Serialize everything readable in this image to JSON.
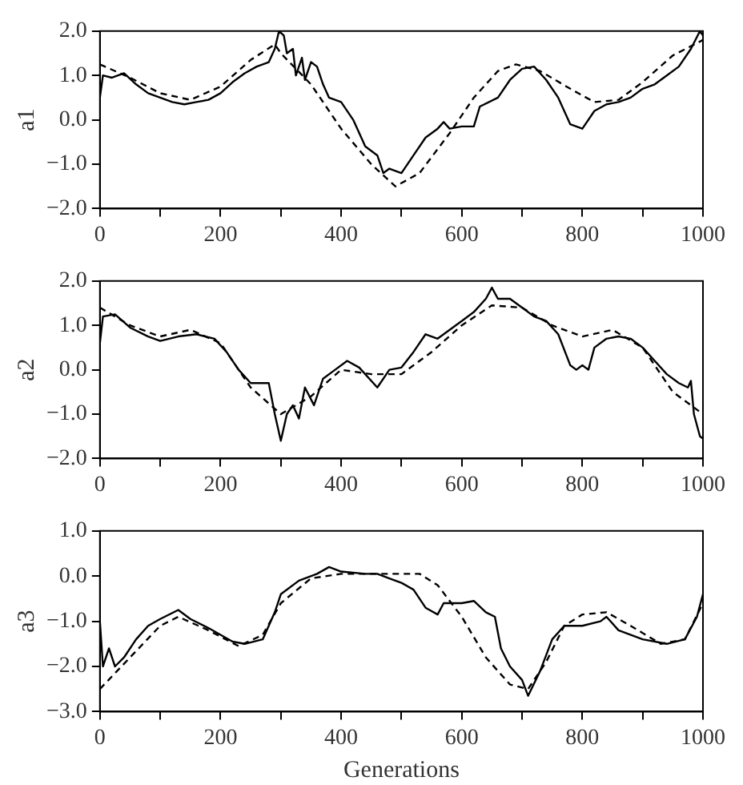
{
  "chart_data": [
    {
      "type": "line",
      "ylabel": "a1",
      "xlim": [
        0,
        1000
      ],
      "ylim": [
        -2,
        2
      ],
      "xticks": [
        0,
        {
          "value": 100,
          "label": null
        },
        200,
        {
          "value": 300,
          "label": null
        },
        400,
        {
          "value": 500,
          "label": null
        },
        600,
        {
          "value": 700,
          "label": null
        },
        800,
        {
          "value": 900,
          "label": null
        },
        1000
      ],
      "yticks": [
        {
          "value": -2,
          "label": "−2.0"
        },
        {
          "value": -1,
          "label": "−1.0"
        },
        {
          "value": 0,
          "label": "0.0"
        },
        {
          "value": 1,
          "label": "1.0"
        },
        {
          "value": 2,
          "label": "2.0"
        }
      ],
      "grid": false,
      "legend": false,
      "series": [
        {
          "color": "#000000",
          "line_style": "solid",
          "x": [
            0,
            5,
            20,
            40,
            60,
            80,
            100,
            120,
            140,
            160,
            180,
            200,
            220,
            240,
            260,
            280,
            290,
            297,
            305,
            310,
            320,
            325,
            335,
            340,
            350,
            360,
            370,
            380,
            400,
            420,
            440,
            460,
            470,
            480,
            500,
            520,
            540,
            560,
            570,
            580,
            600,
            620,
            630,
            660,
            680,
            700,
            720,
            740,
            760,
            780,
            800,
            820,
            840,
            860,
            880,
            900,
            920,
            940,
            960,
            980,
            995,
            1000
          ],
          "values": [
            0.5,
            1.0,
            0.95,
            1.05,
            0.8,
            0.6,
            0.5,
            0.4,
            0.35,
            0.4,
            0.45,
            0.6,
            0.85,
            1.05,
            1.2,
            1.3,
            1.6,
            2.0,
            1.9,
            1.5,
            1.6,
            1.0,
            1.4,
            0.9,
            1.3,
            1.2,
            0.8,
            0.5,
            0.4,
            0.0,
            -0.6,
            -0.8,
            -1.2,
            -1.1,
            -1.2,
            -0.8,
            -0.4,
            -0.2,
            -0.05,
            -0.2,
            -0.15,
            -0.15,
            0.3,
            0.5,
            0.9,
            1.15,
            1.2,
            0.9,
            0.5,
            -0.1,
            -0.2,
            0.2,
            0.35,
            0.4,
            0.5,
            0.7,
            0.8,
            1.0,
            1.2,
            1.6,
            2.0,
            1.9
          ]
        },
        {
          "color": "#000000",
          "line_style": "dashed",
          "x": [
            0,
            50,
            100,
            150,
            200,
            250,
            290,
            300,
            350,
            400,
            450,
            490,
            530,
            580,
            620,
            660,
            690,
            730,
            780,
            820,
            860,
            900,
            950,
            1000
          ],
          "values": [
            1.25,
            0.95,
            0.6,
            0.45,
            0.75,
            1.35,
            1.7,
            1.5,
            0.8,
            -0.2,
            -1.0,
            -1.5,
            -1.2,
            -0.3,
            0.5,
            1.1,
            1.25,
            1.1,
            0.7,
            0.4,
            0.45,
            0.85,
            1.45,
            1.8
          ]
        }
      ]
    },
    {
      "type": "line",
      "ylabel": "a2",
      "xlim": [
        0,
        1000
      ],
      "ylim": [
        -2,
        2
      ],
      "xticks": [
        0,
        {
          "value": 100,
          "label": null
        },
        200,
        {
          "value": 300,
          "label": null
        },
        400,
        {
          "value": 500,
          "label": null
        },
        600,
        {
          "value": 700,
          "label": null
        },
        800,
        {
          "value": 900,
          "label": null
        },
        1000
      ],
      "yticks": [
        {
          "value": -2,
          "label": "−2.0"
        },
        {
          "value": -1,
          "label": "−1.0"
        },
        {
          "value": 0,
          "label": "0.0"
        },
        {
          "value": 1,
          "label": "1.0"
        },
        {
          "value": 2,
          "label": "2.0"
        }
      ],
      "grid": false,
      "legend": false,
      "series": [
        {
          "color": "#000000",
          "line_style": "solid",
          "x": [
            0,
            5,
            25,
            50,
            80,
            100,
            130,
            160,
            190,
            210,
            230,
            250,
            280,
            290,
            300,
            310,
            320,
            330,
            340,
            355,
            370,
            390,
            410,
            430,
            460,
            480,
            500,
            520,
            540,
            560,
            580,
            600,
            620,
            640,
            650,
            660,
            680,
            700,
            720,
            740,
            760,
            780,
            790,
            800,
            810,
            820,
            840,
            860,
            880,
            900,
            920,
            940,
            960,
            975,
            980,
            985,
            995,
            1000
          ],
          "values": [
            0.6,
            1.2,
            1.25,
            0.95,
            0.75,
            0.65,
            0.75,
            0.8,
            0.7,
            0.4,
            0.0,
            -0.3,
            -0.3,
            -1.0,
            -1.6,
            -1.0,
            -0.8,
            -1.1,
            -0.4,
            -0.8,
            -0.2,
            0.0,
            0.2,
            0.05,
            -0.4,
            0.0,
            0.05,
            0.4,
            0.8,
            0.7,
            0.9,
            1.1,
            1.3,
            1.6,
            1.85,
            1.6,
            1.6,
            1.4,
            1.2,
            1.1,
            0.8,
            0.1,
            0.0,
            0.1,
            0.0,
            0.5,
            0.7,
            0.75,
            0.7,
            0.5,
            0.2,
            -0.1,
            -0.3,
            -0.4,
            -0.25,
            -1.0,
            -1.5,
            -1.55
          ]
        },
        {
          "color": "#000000",
          "line_style": "dashed",
          "x": [
            0,
            50,
            100,
            150,
            200,
            250,
            300,
            350,
            400,
            450,
            500,
            550,
            600,
            650,
            700,
            750,
            800,
            850,
            900,
            950,
            1000
          ],
          "values": [
            1.4,
            1.0,
            0.75,
            0.9,
            0.6,
            -0.4,
            -1.0,
            -0.6,
            0.0,
            -0.1,
            -0.1,
            0.4,
            1.0,
            1.45,
            1.4,
            1.0,
            0.75,
            0.9,
            0.5,
            -0.5,
            -1.0
          ]
        }
      ]
    },
    {
      "type": "line",
      "xlabel": "Generations",
      "ylabel": "a3",
      "xlim": [
        0,
        1000
      ],
      "ylim": [
        -3,
        1
      ],
      "xticks": [
        0,
        {
          "value": 100,
          "label": null
        },
        200,
        {
          "value": 300,
          "label": null
        },
        400,
        {
          "value": 500,
          "label": null
        },
        600,
        {
          "value": 700,
          "label": null
        },
        800,
        {
          "value": 900,
          "label": null
        },
        1000
      ],
      "yticks": [
        {
          "value": -3,
          "label": "−3.0"
        },
        {
          "value": -2,
          "label": "−2.0"
        },
        {
          "value": -1,
          "label": "−1.0"
        },
        {
          "value": 0,
          "label": "0.0"
        },
        {
          "value": 1,
          "label": "1.0"
        }
      ],
      "grid": false,
      "legend": false,
      "series": [
        {
          "color": "#000000",
          "line_style": "solid",
          "x": [
            0,
            5,
            15,
            25,
            40,
            60,
            80,
            100,
            130,
            150,
            180,
            200,
            220,
            240,
            270,
            290,
            300,
            330,
            360,
            380,
            400,
            440,
            460,
            480,
            500,
            520,
            540,
            560,
            570,
            600,
            620,
            640,
            655,
            665,
            680,
            700,
            710,
            730,
            750,
            770,
            800,
            830,
            840,
            860,
            900,
            940,
            970,
            990,
            1000
          ],
          "values": [
            -1.0,
            -2.0,
            -1.6,
            -2.0,
            -1.8,
            -1.4,
            -1.1,
            -0.95,
            -0.75,
            -0.95,
            -1.15,
            -1.3,
            -1.45,
            -1.5,
            -1.4,
            -0.8,
            -0.4,
            -0.1,
            0.05,
            0.2,
            0.1,
            0.05,
            0.05,
            -0.05,
            -0.15,
            -0.3,
            -0.7,
            -0.85,
            -0.6,
            -0.6,
            -0.55,
            -0.8,
            -0.9,
            -1.6,
            -2.0,
            -2.3,
            -2.65,
            -2.1,
            -1.4,
            -1.1,
            -1.1,
            -1.0,
            -0.9,
            -1.2,
            -1.4,
            -1.5,
            -1.4,
            -0.9,
            -0.4
          ]
        },
        {
          "color": "#000000",
          "line_style": "dashed",
          "x": [
            0,
            50,
            100,
            130,
            180,
            230,
            270,
            300,
            350,
            400,
            450,
            500,
            530,
            560,
            600,
            640,
            680,
            710,
            740,
            770,
            800,
            840,
            880,
            930,
            970,
            1000
          ],
          "values": [
            -2.5,
            -1.8,
            -1.1,
            -0.9,
            -1.2,
            -1.55,
            -1.3,
            -0.6,
            -0.05,
            0.05,
            0.05,
            0.05,
            0.05,
            -0.2,
            -0.9,
            -1.8,
            -2.4,
            -2.5,
            -1.9,
            -1.1,
            -0.85,
            -0.8,
            -1.1,
            -1.5,
            -1.4,
            -0.6
          ]
        }
      ]
    }
  ]
}
